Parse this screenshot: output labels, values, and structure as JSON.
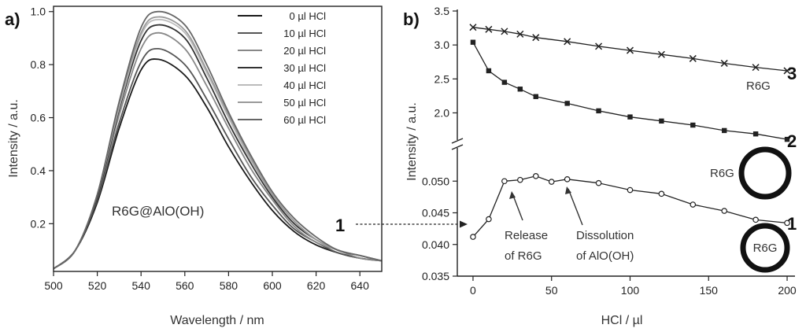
{
  "chart_data": [
    {
      "panel_label": "a)",
      "type": "line",
      "xlabel": "Wavelength / nm",
      "ylabel": "Intensity / a.u.",
      "xlim": [
        500,
        650
      ],
      "ylim": [
        0.02,
        1.02
      ],
      "xticks": [
        "500",
        "520",
        "540",
        "560",
        "580",
        "600",
        "620",
        "640"
      ],
      "yticks": [
        "0.2",
        "0.4",
        "0.6",
        "0.8",
        "1.0"
      ],
      "annotation": "R6G@AlO(OH)",
      "legend_position": "top-right",
      "x": [
        500,
        510,
        520,
        530,
        540,
        548,
        560,
        570,
        580,
        590,
        600,
        610,
        620,
        630,
        640,
        650
      ],
      "series": [
        {
          "name": "0 µl HCl",
          "color": "#1a1a1a",
          "values": [
            0.03,
            0.1,
            0.28,
            0.56,
            0.78,
            0.82,
            0.76,
            0.64,
            0.49,
            0.36,
            0.25,
            0.17,
            0.12,
            0.09,
            0.07,
            0.06
          ]
        },
        {
          "name": "10 µl HCl",
          "color": "#555555",
          "values": [
            0.03,
            0.1,
            0.29,
            0.58,
            0.81,
            0.86,
            0.8,
            0.67,
            0.52,
            0.38,
            0.27,
            0.18,
            0.13,
            0.09,
            0.07,
            0.06
          ]
        },
        {
          "name": "20 µl HCl",
          "color": "#888888",
          "values": [
            0.03,
            0.1,
            0.3,
            0.61,
            0.86,
            0.92,
            0.86,
            0.72,
            0.56,
            0.41,
            0.29,
            0.19,
            0.13,
            0.1,
            0.07,
            0.06
          ]
        },
        {
          "name": "30 µl HCl",
          "color": "#333333",
          "values": [
            0.03,
            0.1,
            0.3,
            0.63,
            0.89,
            0.95,
            0.9,
            0.75,
            0.58,
            0.43,
            0.3,
            0.2,
            0.14,
            0.1,
            0.08,
            0.06
          ]
        },
        {
          "name": "40 µl HCl",
          "color": "#bbbbbb",
          "values": [
            0.03,
            0.1,
            0.31,
            0.64,
            0.91,
            0.97,
            0.92,
            0.77,
            0.6,
            0.44,
            0.31,
            0.21,
            0.14,
            0.1,
            0.08,
            0.06
          ]
        },
        {
          "name": "50 µl HCl",
          "color": "#999999",
          "values": [
            0.03,
            0.1,
            0.31,
            0.65,
            0.92,
            0.98,
            0.93,
            0.78,
            0.61,
            0.45,
            0.31,
            0.21,
            0.14,
            0.1,
            0.08,
            0.06
          ]
        },
        {
          "name": "60 µl HCl",
          "color": "#666666",
          "values": [
            0.03,
            0.1,
            0.31,
            0.66,
            0.94,
            1.0,
            0.95,
            0.8,
            0.62,
            0.46,
            0.32,
            0.22,
            0.15,
            0.1,
            0.08,
            0.06
          ]
        }
      ]
    },
    {
      "panel_label": "b)",
      "type": "line",
      "xlabel": "HCl / µl",
      "ylabel": "Intensity / a.u.",
      "xlim": [
        -10,
        205
      ],
      "xticks": [
        "0",
        "50",
        "100",
        "150",
        "200"
      ],
      "broken_axis": true,
      "upper_ylim": [
        1.6,
        3.5
      ],
      "upper_yticks": [
        "2.0",
        "2.5",
        "3.0",
        "3.5"
      ],
      "lower_ylim": [
        0.035,
        0.055
      ],
      "lower_yticks": [
        "0.035",
        "0.040",
        "0.045",
        "0.050"
      ],
      "x": [
        0,
        10,
        20,
        30,
        40,
        50,
        60,
        80,
        100,
        120,
        140,
        160,
        180,
        200
      ],
      "series": [
        {
          "label": "3",
          "sublabel": "R6G",
          "marker": "x",
          "segment": "upper",
          "values": [
            3.26,
            3.23,
            3.2,
            3.16,
            3.11,
            null,
            3.05,
            2.98,
            2.92,
            2.86,
            2.8,
            2.73,
            2.67,
            2.62
          ]
        },
        {
          "label": "2",
          "marker": "square",
          "segment": "upper",
          "values": [
            3.04,
            2.62,
            2.45,
            2.35,
            2.24,
            null,
            2.14,
            2.03,
            1.94,
            1.88,
            1.82,
            1.74,
            1.69,
            1.61
          ]
        },
        {
          "label": "1",
          "marker": "circle",
          "segment": "lower",
          "values": [
            0.0412,
            0.044,
            0.05,
            0.0502,
            0.0508,
            0.0499,
            0.0503,
            0.0497,
            0.0486,
            0.048,
            0.0463,
            0.0453,
            0.0439,
            0.0434
          ]
        }
      ],
      "annotations": {
        "release_line1": "Release",
        "release_line2": "of R6G",
        "dissolution_line1": "Dissolution",
        "dissolution_line2": "of AlO(OH)",
        "left_label": "1",
        "circle_label_top": "R6G",
        "circle_label_bottom": "R6G"
      }
    }
  ]
}
